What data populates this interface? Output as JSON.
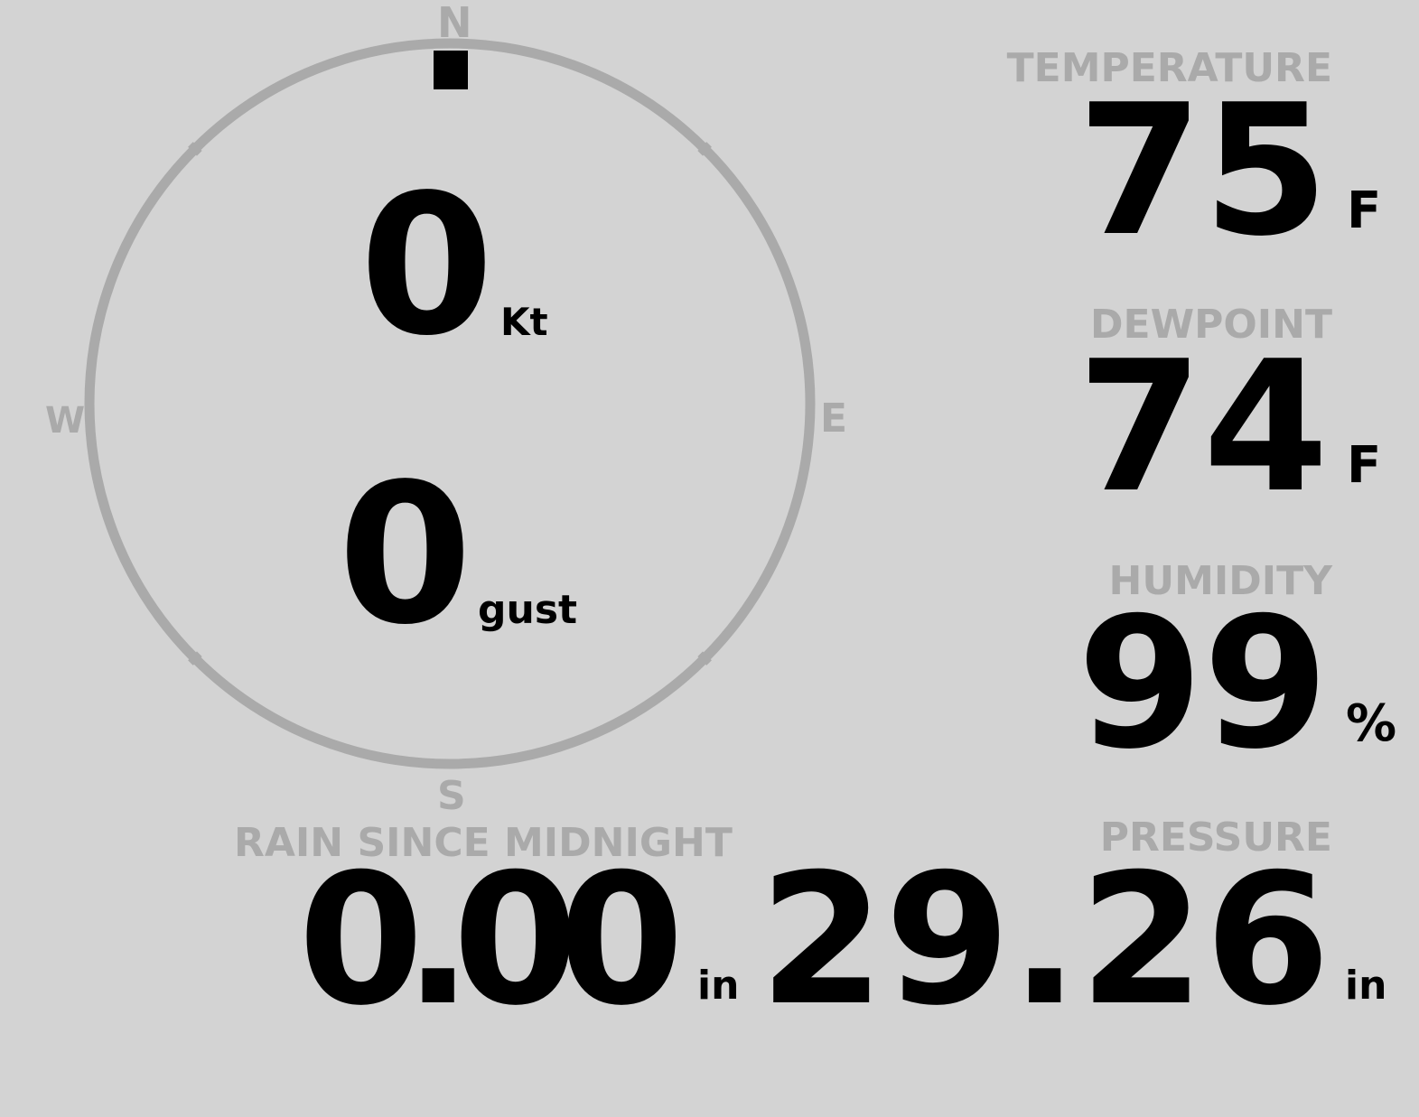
{
  "colors": {
    "background": "#d3d3d3",
    "label": "#aaaaaa",
    "value": "#000000"
  },
  "compass": {
    "north": "N",
    "east": "E",
    "south": "S",
    "west": "W",
    "wind_direction_deg": 0,
    "speed": "0",
    "speed_unit": "Kt",
    "gust": "0",
    "gust_unit": "gust"
  },
  "temperature": {
    "label": "TEMPERATURE",
    "value": "75",
    "unit": "F"
  },
  "dewpoint": {
    "label": "DEWPOINT",
    "value": "74",
    "unit": "F"
  },
  "humidity": {
    "label": "HUMIDITY",
    "value": "99",
    "unit": "%"
  },
  "rain": {
    "label": "RAIN SINCE MIDNIGHT",
    "value": "0.00",
    "unit": "in"
  },
  "pressure": {
    "label": "PRESSURE",
    "value": "29.26",
    "unit": "in"
  }
}
